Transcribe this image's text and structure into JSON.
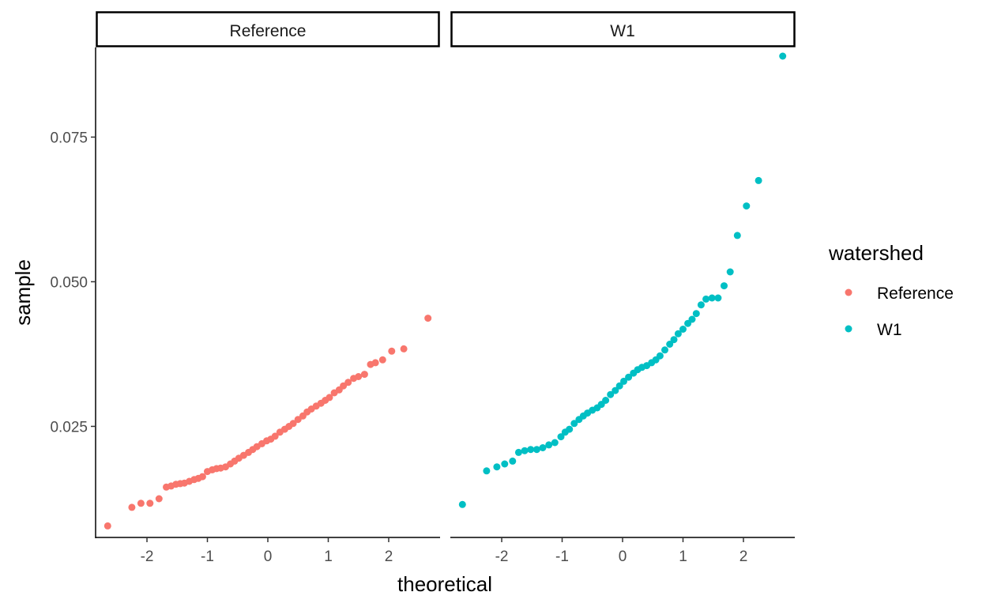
{
  "chart_data": {
    "type": "scatter",
    "xlabel": "theoretical",
    "ylabel": "sample",
    "xlim": [
      -2.85,
      2.85
    ],
    "ylim": [
      0.0058,
      0.0905
    ],
    "x_ticks": [
      -2,
      -1,
      0,
      1,
      2
    ],
    "x_tick_labels": [
      "-2",
      "-1",
      "0",
      "1",
      "2"
    ],
    "y_ticks": [
      0.025,
      0.05,
      0.075
    ],
    "y_tick_labels": [
      "0.025",
      "0.050",
      "0.075"
    ],
    "grid": false,
    "legend": {
      "title": "watershed",
      "placement": "right",
      "entries": [
        "Reference",
        "W1"
      ]
    },
    "panels": [
      {
        "strip": "Reference",
        "color": "#F8766D",
        "points": [
          [
            -2.65,
            0.0078
          ],
          [
            -2.25,
            0.011
          ],
          [
            -2.1,
            0.0117
          ],
          [
            -1.95,
            0.0117
          ],
          [
            -1.8,
            0.0125
          ],
          [
            -1.68,
            0.0145
          ],
          [
            -1.6,
            0.0147
          ],
          [
            -1.52,
            0.015
          ],
          [
            -1.45,
            0.0151
          ],
          [
            -1.38,
            0.0152
          ],
          [
            -1.3,
            0.0155
          ],
          [
            -1.22,
            0.0158
          ],
          [
            -1.15,
            0.016
          ],
          [
            -1.08,
            0.0163
          ],
          [
            -1.0,
            0.0172
          ],
          [
            -0.92,
            0.0175
          ],
          [
            -0.85,
            0.0177
          ],
          [
            -0.78,
            0.0178
          ],
          [
            -0.7,
            0.018
          ],
          [
            -0.62,
            0.0185
          ],
          [
            -0.55,
            0.019
          ],
          [
            -0.48,
            0.0195
          ],
          [
            -0.4,
            0.02
          ],
          [
            -0.32,
            0.0205
          ],
          [
            -0.25,
            0.021
          ],
          [
            -0.18,
            0.0215
          ],
          [
            -0.1,
            0.022
          ],
          [
            -0.02,
            0.0225
          ],
          [
            0.05,
            0.0228
          ],
          [
            0.12,
            0.0233
          ],
          [
            0.2,
            0.024
          ],
          [
            0.28,
            0.0245
          ],
          [
            0.35,
            0.025
          ],
          [
            0.42,
            0.0255
          ],
          [
            0.5,
            0.0262
          ],
          [
            0.58,
            0.0268
          ],
          [
            0.65,
            0.0275
          ],
          [
            0.72,
            0.028
          ],
          [
            0.8,
            0.0285
          ],
          [
            0.88,
            0.029
          ],
          [
            0.95,
            0.0295
          ],
          [
            1.02,
            0.03
          ],
          [
            1.1,
            0.0308
          ],
          [
            1.18,
            0.0313
          ],
          [
            1.25,
            0.032
          ],
          [
            1.33,
            0.0326
          ],
          [
            1.42,
            0.0333
          ],
          [
            1.5,
            0.0336
          ],
          [
            1.6,
            0.034
          ],
          [
            1.7,
            0.0357
          ],
          [
            1.78,
            0.036
          ],
          [
            1.9,
            0.0365
          ],
          [
            2.05,
            0.038
          ],
          [
            2.25,
            0.0384
          ],
          [
            2.65,
            0.0437
          ]
        ]
      },
      {
        "strip": "W1",
        "color": "#00BFC4",
        "points": [
          [
            -2.65,
            0.0115
          ],
          [
            -2.25,
            0.0173
          ],
          [
            -2.08,
            0.018
          ],
          [
            -1.95,
            0.0185
          ],
          [
            -1.82,
            0.019
          ],
          [
            -1.72,
            0.0205
          ],
          [
            -1.62,
            0.0208
          ],
          [
            -1.52,
            0.021
          ],
          [
            -1.42,
            0.021
          ],
          [
            -1.32,
            0.0213
          ],
          [
            -1.22,
            0.0218
          ],
          [
            -1.12,
            0.0222
          ],
          [
            -1.02,
            0.0232
          ],
          [
            -0.95,
            0.024
          ],
          [
            -0.88,
            0.0245
          ],
          [
            -0.8,
            0.0255
          ],
          [
            -0.72,
            0.0262
          ],
          [
            -0.65,
            0.0268
          ],
          [
            -0.58,
            0.0273
          ],
          [
            -0.5,
            0.0278
          ],
          [
            -0.42,
            0.0282
          ],
          [
            -0.35,
            0.0288
          ],
          [
            -0.28,
            0.0295
          ],
          [
            -0.2,
            0.0305
          ],
          [
            -0.12,
            0.0312
          ],
          [
            -0.05,
            0.032
          ],
          [
            0.02,
            0.0328
          ],
          [
            0.1,
            0.0335
          ],
          [
            0.18,
            0.0342
          ],
          [
            0.25,
            0.0348
          ],
          [
            0.32,
            0.0352
          ],
          [
            0.4,
            0.0355
          ],
          [
            0.48,
            0.036
          ],
          [
            0.55,
            0.0365
          ],
          [
            0.62,
            0.0372
          ],
          [
            0.7,
            0.0382
          ],
          [
            0.78,
            0.0392
          ],
          [
            0.85,
            0.04
          ],
          [
            0.92,
            0.041
          ],
          [
            1.0,
            0.0418
          ],
          [
            1.08,
            0.0428
          ],
          [
            1.15,
            0.0435
          ],
          [
            1.22,
            0.0445
          ],
          [
            1.3,
            0.046
          ],
          [
            1.38,
            0.047
          ],
          [
            1.48,
            0.0472
          ],
          [
            1.58,
            0.0472
          ],
          [
            1.68,
            0.0493
          ],
          [
            1.78,
            0.0517
          ],
          [
            1.9,
            0.058
          ],
          [
            2.05,
            0.0631
          ],
          [
            2.25,
            0.0675
          ],
          [
            2.65,
            0.089
          ]
        ]
      }
    ]
  }
}
